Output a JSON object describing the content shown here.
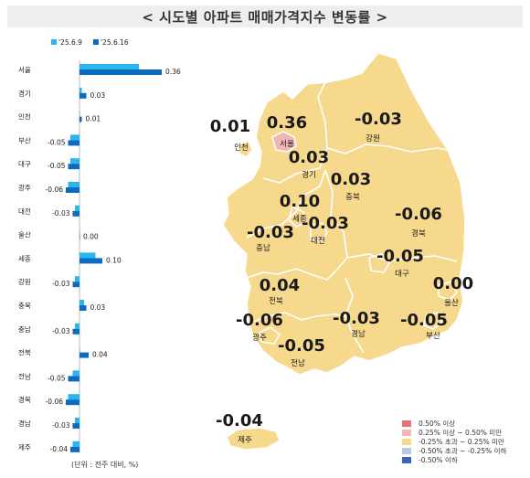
{
  "title": "< 시도별 아파트 매매가격지수 변동률 >",
  "unit_note": "(단위 : 전주 대비, %)",
  "colors": {
    "prev_bar": "#29b6ef",
    "curr_bar": "#0b6bbf",
    "map_base": "#f6d98d",
    "map_seoul": "#f2b5b5",
    "map_stroke": "#ffffff",
    "leg_1": "#e57373",
    "leg_2": "#f4b8b8",
    "leg_3": "#f6d98d",
    "leg_4": "#b8c6ea",
    "leg_5": "#3a63b8"
  },
  "chart_data": {
    "type": "bar",
    "orientation": "horizontal",
    "categories": [
      "서울",
      "경기",
      "인천",
      "부산",
      "대구",
      "광주",
      "대전",
      "울산",
      "세종",
      "강원",
      "충북",
      "충남",
      "전북",
      "전남",
      "경북",
      "경남",
      "제주"
    ],
    "series": [
      {
        "name": "'25.6.9",
        "values": [
          0.26,
          0.01,
          0.0,
          -0.04,
          -0.04,
          -0.05,
          -0.02,
          0.0,
          0.07,
          -0.02,
          0.02,
          -0.02,
          0.0,
          -0.03,
          -0.05,
          -0.02,
          -0.03
        ]
      },
      {
        "name": "'25.6.16",
        "values": [
          0.36,
          0.03,
          0.01,
          -0.05,
          -0.05,
          -0.06,
          -0.03,
          0.0,
          0.1,
          -0.03,
          0.03,
          -0.03,
          0.04,
          -0.05,
          -0.06,
          -0.03,
          -0.04
        ]
      }
    ],
    "value_labels": [
      "0.36",
      "0.03",
      "0.01",
      "-0.05",
      "-0.05",
      "-0.06",
      "-0.03",
      "0.00",
      "0.10",
      "-0.03",
      "0.03",
      "-0.03",
      "0.04",
      "-0.05",
      "-0.06",
      "-0.03",
      "-0.04"
    ],
    "legend_position": "top",
    "xlim": [
      -0.1,
      0.4
    ],
    "grid": false
  },
  "map_labels": [
    {
      "region": "인천",
      "value": "0.01"
    },
    {
      "region": "서울",
      "value": "0.36"
    },
    {
      "region": "강원",
      "value": "-0.03"
    },
    {
      "region": "경기",
      "value": "0.03"
    },
    {
      "region": "충북",
      "value": "0.03"
    },
    {
      "region": "세종",
      "value": "0.10"
    },
    {
      "region": "대전",
      "value": "-0.03"
    },
    {
      "region": "충남",
      "value": "-0.03"
    },
    {
      "region": "경북",
      "value": "-0.06"
    },
    {
      "region": "대구",
      "value": "-0.05"
    },
    {
      "region": "전북",
      "value": "0.04"
    },
    {
      "region": "울산",
      "value": "0.00"
    },
    {
      "region": "광주",
      "value": "-0.06"
    },
    {
      "region": "경남",
      "value": "-0.03"
    },
    {
      "region": "부산",
      "value": "-0.05"
    },
    {
      "region": "전남",
      "value": "-0.05"
    },
    {
      "region": "제주",
      "value": "-0.04"
    }
  ],
  "map_legend": [
    "0.50% 이상",
    "0.25% 이상 ~ 0.50% 미만",
    "-0.25% 초과 ~ 0.25% 미만",
    "-0.50% 초과 ~ -0.25% 이하",
    "-0.50% 이하"
  ]
}
